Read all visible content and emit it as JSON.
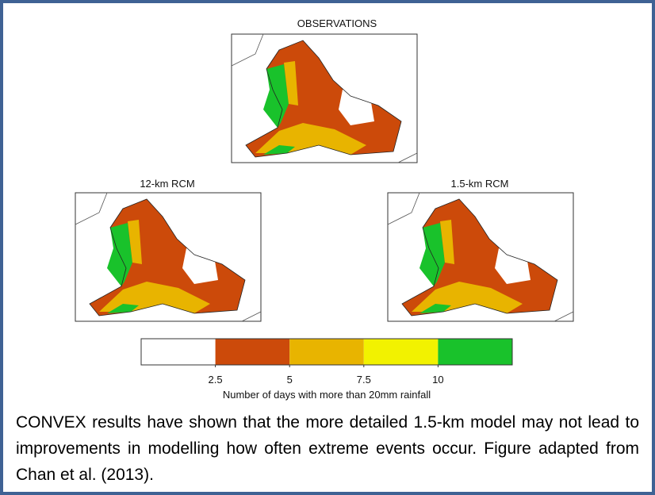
{
  "figure": {
    "panels": [
      {
        "title": "OBSERVATIONS"
      },
      {
        "title": "12-km RCM"
      },
      {
        "title": "1.5-km RCM"
      }
    ],
    "colorbar": {
      "colors": [
        "#ffffff",
        "#cc4a0a",
        "#e8b400",
        "#f2f200",
        "#19c22b"
      ],
      "lim": [
        0,
        12.5
      ],
      "ticks": [
        2.5,
        5,
        7.5,
        10
      ],
      "label": "Number of days with more than 20mm rainfall"
    }
  },
  "caption": "CONVEX results have shown that the more detailed 1.5-km model may not lead to improvements in modelling how often extreme events occur.  Figure adapted from Chan et al. (2013)."
}
